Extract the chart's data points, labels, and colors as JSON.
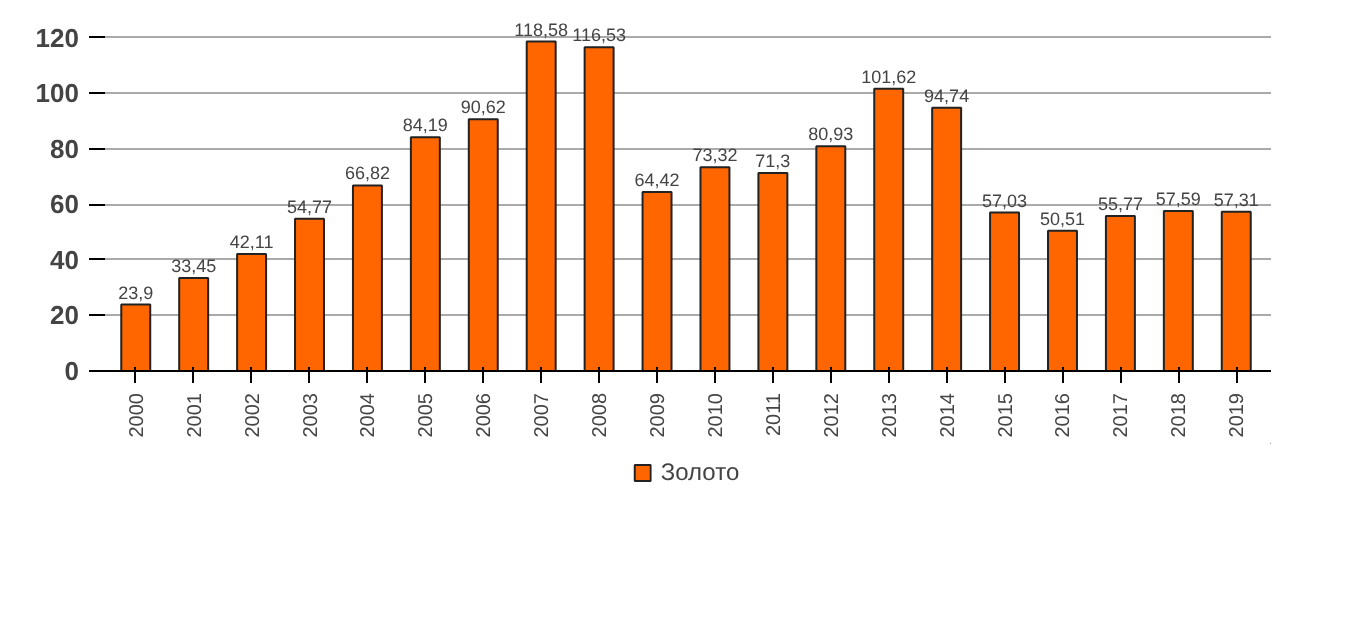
{
  "chart_data": {
    "type": "bar",
    "categories": [
      "2000",
      "2001",
      "2002",
      "2003",
      "2004",
      "2005",
      "2006",
      "2007",
      "2008",
      "2009",
      "2010",
      "2011",
      "2012",
      "2013",
      "2014",
      "2015",
      "2016",
      "2017",
      "2018",
      "2019"
    ],
    "series": [
      {
        "name": "Золото",
        "color": "#ff6600",
        "values": [
          23.9,
          33.45,
          42.11,
          54.77,
          66.82,
          84.19,
          90.62,
          118.58,
          116.53,
          64.42,
          73.32,
          71.3,
          80.93,
          101.62,
          94.74,
          57.03,
          50.51,
          55.77,
          57.59,
          57.31
        ],
        "value_labels": [
          "23,9",
          "33,45",
          "42,11",
          "54,77",
          "66,82",
          "84,19",
          "90,62",
          "118,58",
          "116,53",
          "64,42",
          "73,32",
          "71,3",
          "80,93",
          "101,62",
          "94,74",
          "57,03",
          "50,51",
          "55,77",
          "57,59",
          "57,31"
        ]
      }
    ],
    "ylim": [
      0,
      120
    ],
    "yticks": [
      0,
      20,
      40,
      60,
      80,
      100,
      120
    ],
    "grid": "y",
    "legend": "bottom"
  }
}
